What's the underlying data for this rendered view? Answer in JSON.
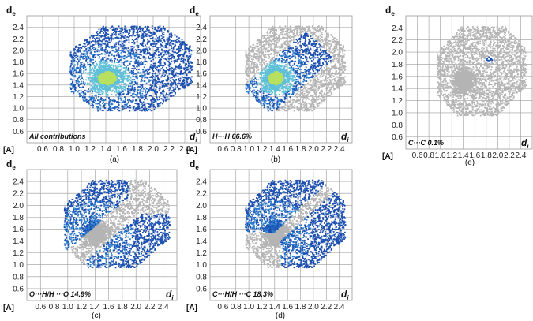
{
  "chart_data": [
    {
      "type": "scatter",
      "title": "",
      "label": "All contributions",
      "caption": "(a)",
      "ylabel": "de",
      "xlabel": "di",
      "unit_label": "[A]",
      "xlim": [
        0.4,
        2.6
      ],
      "ylim": [
        0.4,
        2.6
      ],
      "x_ticks": [
        "0.6",
        "0.8",
        "1.0",
        "1.2",
        "1.4",
        "1.6",
        "1.8",
        "2.0",
        "2.2",
        "2.4"
      ],
      "y_ticks": [
        "0.6",
        "0.8",
        "1.0",
        "1.2",
        "1.4",
        "1.6",
        "1.8",
        "2.0",
        "2.2",
        "2.4"
      ],
      "grid": true,
      "highlight": "all"
    },
    {
      "type": "scatter",
      "title": "",
      "label": "H···H 66.6%",
      "caption": "(b)",
      "ylabel": "de",
      "xlabel": "di",
      "unit_label": "[A]",
      "xlim": [
        0.4,
        2.6
      ],
      "ylim": [
        0.4,
        2.6
      ],
      "x_ticks": [
        "0.6",
        "0.8",
        "1.0",
        "1.2",
        "1.4",
        "1.6",
        "1.8",
        "2.0",
        "2.2",
        "2.4"
      ],
      "y_ticks": [
        "0.6",
        "0.8",
        "1.0",
        "1.2",
        "1.4",
        "1.6",
        "1.8",
        "2.0",
        "2.2",
        "2.4"
      ],
      "grid": true,
      "highlight": "HH"
    },
    {
      "type": "scatter",
      "title": "",
      "label": "C···C 0.1%",
      "caption": "(e)",
      "ylabel": "de",
      "xlabel": "di",
      "unit_label": "[A]",
      "xlim": [
        0.4,
        2.6
      ],
      "ylim": [
        0.4,
        2.6
      ],
      "x_ticks": [
        "0.6",
        "0.8",
        "1.0",
        "1.2",
        "1.4",
        "1.6",
        "1.8",
        "2.0",
        "2.2",
        "2.4"
      ],
      "y_ticks": [
        "0.6",
        "0.8",
        "1.0",
        "1.2",
        "1.4",
        "1.6",
        "1.8",
        "2.0",
        "2.2",
        "2.4"
      ],
      "grid": true,
      "highlight": "CC"
    },
    {
      "type": "scatter",
      "title": "",
      "label": "O···H/H ···O 14.9%",
      "caption": "(c)",
      "ylabel": "de",
      "xlabel": "di",
      "unit_label": "[A]",
      "xlim": [
        0.4,
        2.6
      ],
      "ylim": [
        0.4,
        2.6
      ],
      "x_ticks": [
        "0.6",
        "0.8",
        "1.0",
        "1.2",
        "1.4",
        "1.6",
        "1.8",
        "2.0",
        "2.2",
        "2.4"
      ],
      "y_ticks": [
        "0.6",
        "0.8",
        "1.0",
        "1.2",
        "1.4",
        "1.6",
        "1.8",
        "2.0",
        "2.2",
        "2.4"
      ],
      "grid": true,
      "highlight": "OH"
    },
    {
      "type": "scatter",
      "title": "",
      "label": "C···H/H ···C 18.3%",
      "caption": "(d)",
      "ylabel": "de",
      "xlabel": "di",
      "unit_label": "[A]",
      "xlim": [
        0.4,
        2.6
      ],
      "ylim": [
        0.4,
        2.6
      ],
      "x_ticks": [
        "0.6",
        "0.8",
        "1.0",
        "1.2",
        "1.4",
        "1.6",
        "1.8",
        "2.0",
        "2.2",
        "2.4"
      ],
      "y_ticks": [
        "0.6",
        "0.8",
        "1.0",
        "1.2",
        "1.4",
        "1.6",
        "1.8",
        "2.0",
        "2.2",
        "2.4"
      ],
      "grid": true,
      "highlight": "CH"
    }
  ],
  "colors": {
    "fingerprint_dark": "#1a4fb0",
    "fingerprint_mid": "#2f7fd0",
    "fingerprint_light": "#5fc0d8",
    "fingerprint_hot": "#b8e060",
    "background_points": "#b4b4b4",
    "grid": "#9a9a9a"
  }
}
